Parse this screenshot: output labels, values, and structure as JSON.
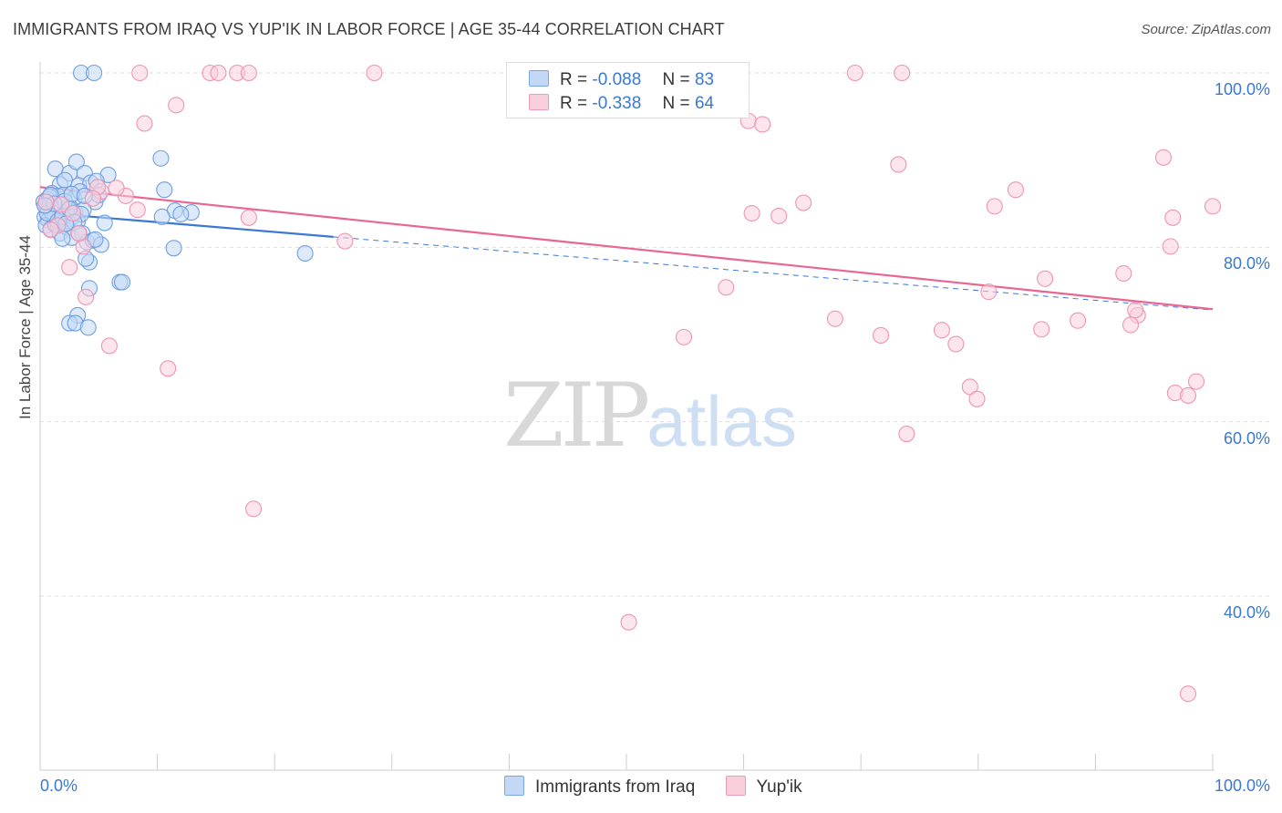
{
  "title": "IMMIGRANTS FROM IRAQ VS YUP'IK IN LABOR FORCE | AGE 35-44 CORRELATION CHART",
  "source": "Source: ZipAtlas.com",
  "watermark": {
    "zip": "ZIP",
    "atlas": "atlas"
  },
  "legend": {
    "blue": {
      "r_label": "R =",
      "r_value": "-0.088",
      "n_label": "N =",
      "n_value": "83"
    },
    "pink": {
      "r_label": "R =",
      "r_value": "-0.338",
      "n_label": "N =",
      "n_value": "64"
    }
  },
  "colors": {
    "blue": "#3a78d4",
    "blue_fill": "#c2d8f5",
    "pink": "#e8668f",
    "pink_fill": "#f9cfdc",
    "grid": "#dddddd"
  },
  "chart_data": {
    "type": "scatter",
    "title": "IMMIGRANTS FROM IRAQ VS YUP'IK IN LABOR FORCE | AGE 35-44 CORRELATION CHART",
    "xlabel": "",
    "ylabel": "In Labor Force | Age 35-44",
    "xlim": [
      0,
      100
    ],
    "ylim": [
      20,
      102
    ],
    "x_tick_labels": [
      "0.0%",
      "100.0%"
    ],
    "y_ticks": [
      40,
      60,
      80,
      100
    ],
    "y_tick_labels": [
      "40.0%",
      "60.0%",
      "80.0%",
      "100.0%"
    ],
    "series": [
      {
        "name": "Immigrants from Iraq",
        "color": "#3a78d4",
        "R": -0.088,
        "N": 83,
        "trend": {
          "x0": 0,
          "y0": 84.0,
          "x1": 25,
          "y1": 81.2,
          "dash_to_x": 100,
          "dash_to_y": 72.8
        },
        "points": [
          [
            3.5,
            100
          ],
          [
            4.6,
            100
          ],
          [
            1.3,
            89
          ],
          [
            2.5,
            88.5
          ],
          [
            3.1,
            89.8
          ],
          [
            3.8,
            88.5
          ],
          [
            5.8,
            88.3
          ],
          [
            10.3,
            90.2
          ],
          [
            1.7,
            87.2
          ],
          [
            2.1,
            87.7
          ],
          [
            3.3,
            87.1
          ],
          [
            4.3,
            87.4
          ],
          [
            4.8,
            87.6
          ],
          [
            10.6,
            86.6
          ],
          [
            1.0,
            86.2
          ],
          [
            1.5,
            85.9
          ],
          [
            2.0,
            86.0
          ],
          [
            2.9,
            85.6
          ],
          [
            3.4,
            86.4
          ],
          [
            4.7,
            85.2
          ],
          [
            5.0,
            86.0
          ],
          [
            0.3,
            85.2
          ],
          [
            0.6,
            85.5
          ],
          [
            0.8,
            84.7
          ],
          [
            1.1,
            84.4
          ],
          [
            1.4,
            84.2
          ],
          [
            1.8,
            84.9
          ],
          [
            2.2,
            84.0
          ],
          [
            2.6,
            84.5
          ],
          [
            3.0,
            84.0
          ],
          [
            3.7,
            84.3
          ],
          [
            11.5,
            84.2
          ],
          [
            12.9,
            84.0
          ],
          [
            0.4,
            83.5
          ],
          [
            0.7,
            83.1
          ],
          [
            1.2,
            83.3
          ],
          [
            1.6,
            82.7
          ],
          [
            2.0,
            83.7
          ],
          [
            2.4,
            83.0
          ],
          [
            2.8,
            83.5
          ],
          [
            3.2,
            83.0
          ],
          [
            5.5,
            82.8
          ],
          [
            10.4,
            83.5
          ],
          [
            12.0,
            83.8
          ],
          [
            0.5,
            82.5
          ],
          [
            0.9,
            82.1
          ],
          [
            1.3,
            82.6
          ],
          [
            1.7,
            81.6
          ],
          [
            2.3,
            82.3
          ],
          [
            2.7,
            81.1
          ],
          [
            3.6,
            81.6
          ],
          [
            1.9,
            81.0
          ],
          [
            4.0,
            80.6
          ],
          [
            4.5,
            80.8
          ],
          [
            5.2,
            80.3
          ],
          [
            11.4,
            79.9
          ],
          [
            4.7,
            80.9
          ],
          [
            4.2,
            78.3
          ],
          [
            3.9,
            78.7
          ],
          [
            22.6,
            79.3
          ],
          [
            6.8,
            76.0
          ],
          [
            7.0,
            76.0
          ],
          [
            4.2,
            75.3
          ],
          [
            3.2,
            72.2
          ],
          [
            2.5,
            71.3
          ],
          [
            3.0,
            71.3
          ],
          [
            4.1,
            70.8
          ],
          [
            0.8,
            85.8
          ],
          [
            1.0,
            84.0
          ],
          [
            0.6,
            83.9
          ],
          [
            1.5,
            83.0
          ],
          [
            2.1,
            85.3
          ],
          [
            2.7,
            86.1
          ],
          [
            3.5,
            83.8
          ],
          [
            0.9,
            86.0
          ],
          [
            1.2,
            85.0
          ],
          [
            1.9,
            83.5
          ],
          [
            2.5,
            84.4
          ],
          [
            2.9,
            82.9
          ],
          [
            3.3,
            81.6
          ],
          [
            0.4,
            84.8
          ],
          [
            2.2,
            82.7
          ],
          [
            3.8,
            85.9
          ]
        ]
      },
      {
        "name": "Yup'ik",
        "color": "#e8668f",
        "R": -0.338,
        "N": 64,
        "trend": {
          "x0": 0,
          "y0": 86.9,
          "x1": 100,
          "y1": 72.9
        },
        "points": [
          [
            8.5,
            100
          ],
          [
            14.5,
            100
          ],
          [
            15.2,
            100
          ],
          [
            16.8,
            100
          ],
          [
            17.8,
            100
          ],
          [
            28.5,
            100
          ],
          [
            69.5,
            100
          ],
          [
            73.5,
            100
          ],
          [
            11.6,
            96.3
          ],
          [
            8.9,
            94.2
          ],
          [
            60.4,
            94.5
          ],
          [
            61.6,
            94.1
          ],
          [
            95.8,
            90.3
          ],
          [
            73.2,
            89.5
          ],
          [
            83.2,
            86.6
          ],
          [
            7.3,
            85.9
          ],
          [
            5.2,
            86.4
          ],
          [
            4.9,
            86.9
          ],
          [
            8.3,
            84.3
          ],
          [
            17.8,
            83.4
          ],
          [
            60.7,
            83.9
          ],
          [
            63.0,
            83.6
          ],
          [
            65.1,
            85.1
          ],
          [
            81.4,
            84.7
          ],
          [
            100,
            84.7
          ],
          [
            96.6,
            83.4
          ],
          [
            1.5,
            82.5
          ],
          [
            0.9,
            82.0
          ],
          [
            3.7,
            80.1
          ],
          [
            26.0,
            80.7
          ],
          [
            96.4,
            80.1
          ],
          [
            2.5,
            77.7
          ],
          [
            92.4,
            77.0
          ],
          [
            85.7,
            76.4
          ],
          [
            58.5,
            75.4
          ],
          [
            80.9,
            74.9
          ],
          [
            3.9,
            74.3
          ],
          [
            67.8,
            71.8
          ],
          [
            76.9,
            70.5
          ],
          [
            71.7,
            69.9
          ],
          [
            78.1,
            68.9
          ],
          [
            54.9,
            69.7
          ],
          [
            85.4,
            70.6
          ],
          [
            88.5,
            71.6
          ],
          [
            93.6,
            72.2
          ],
          [
            93.4,
            72.8
          ],
          [
            93.0,
            71.1
          ],
          [
            5.9,
            68.7
          ],
          [
            10.9,
            66.1
          ],
          [
            79.3,
            64.0
          ],
          [
            79.9,
            62.6
          ],
          [
            98.6,
            64.6
          ],
          [
            96.8,
            63.3
          ],
          [
            97.9,
            63.0
          ],
          [
            73.9,
            58.6
          ],
          [
            18.2,
            50.0
          ],
          [
            50.2,
            37.0
          ],
          [
            97.9,
            28.8
          ],
          [
            1.8,
            84.9
          ],
          [
            2.8,
            83.9
          ],
          [
            4.5,
            85.6
          ],
          [
            0.5,
            85.2
          ],
          [
            6.5,
            86.8
          ],
          [
            3.3,
            81.6
          ]
        ]
      }
    ]
  }
}
